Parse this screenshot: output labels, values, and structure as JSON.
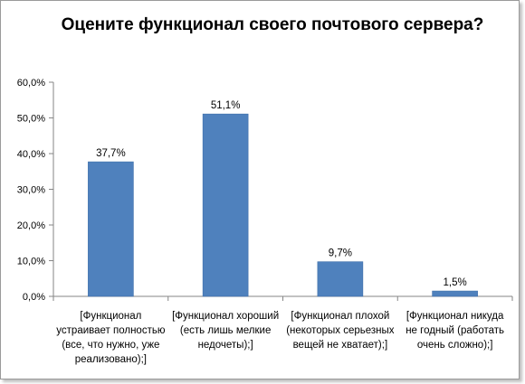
{
  "chart_data": {
    "type": "bar",
    "title": "Оцените функционал своего почтового сервера?",
    "categories": [
      "[Функционал устраивает полностью (все, что нужно, уже реализовано);]",
      "[Функционал хороший (есть лишь мелкие недочеты);]",
      "[Функционал плохой (некоторых серьезных вещей не хватает);]",
      "[Функционал никуда не годный (работать очень сложно);]"
    ],
    "values": [
      37.7,
      51.1,
      9.7,
      1.5
    ],
    "data_labels": [
      "37,7%",
      "51,1%",
      "9,7%",
      "1,5%"
    ],
    "xlabel": "",
    "ylabel": "",
    "ylim": [
      0,
      60
    ],
    "yticks": [
      0,
      10,
      20,
      30,
      40,
      50,
      60
    ],
    "ytick_labels": [
      "0,0%",
      "10,0%",
      "20,0%",
      "30,0%",
      "40,0%",
      "50,0%",
      "60,0%"
    ],
    "grid": false,
    "legend": "none",
    "colors": {
      "bar": "#4f81bd",
      "bar_edge": "#3c6da8",
      "axis": "#868686"
    }
  }
}
